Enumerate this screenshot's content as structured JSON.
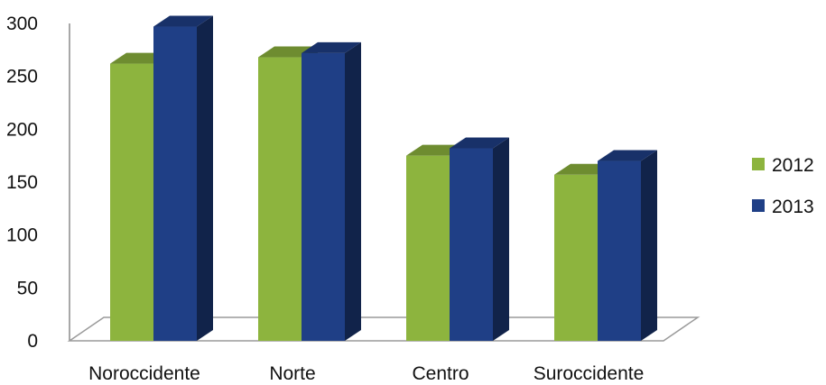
{
  "chart_data": {
    "type": "bar",
    "style": "3d-clustered-column",
    "categories": [
      "Noroccidente",
      "Norte",
      "Centro",
      "Suroccidente"
    ],
    "series": [
      {
        "name": "2012",
        "color": "#8DB43E",
        "values": [
          262,
          268,
          175,
          157
        ]
      },
      {
        "name": "2013",
        "color": "#1F3F86",
        "values": [
          297,
          272,
          182,
          170
        ]
      }
    ],
    "ylim": [
      0,
      300
    ],
    "yticks": [
      0,
      50,
      100,
      150,
      200,
      250,
      300
    ],
    "grid": false,
    "legend_position": "right"
  }
}
